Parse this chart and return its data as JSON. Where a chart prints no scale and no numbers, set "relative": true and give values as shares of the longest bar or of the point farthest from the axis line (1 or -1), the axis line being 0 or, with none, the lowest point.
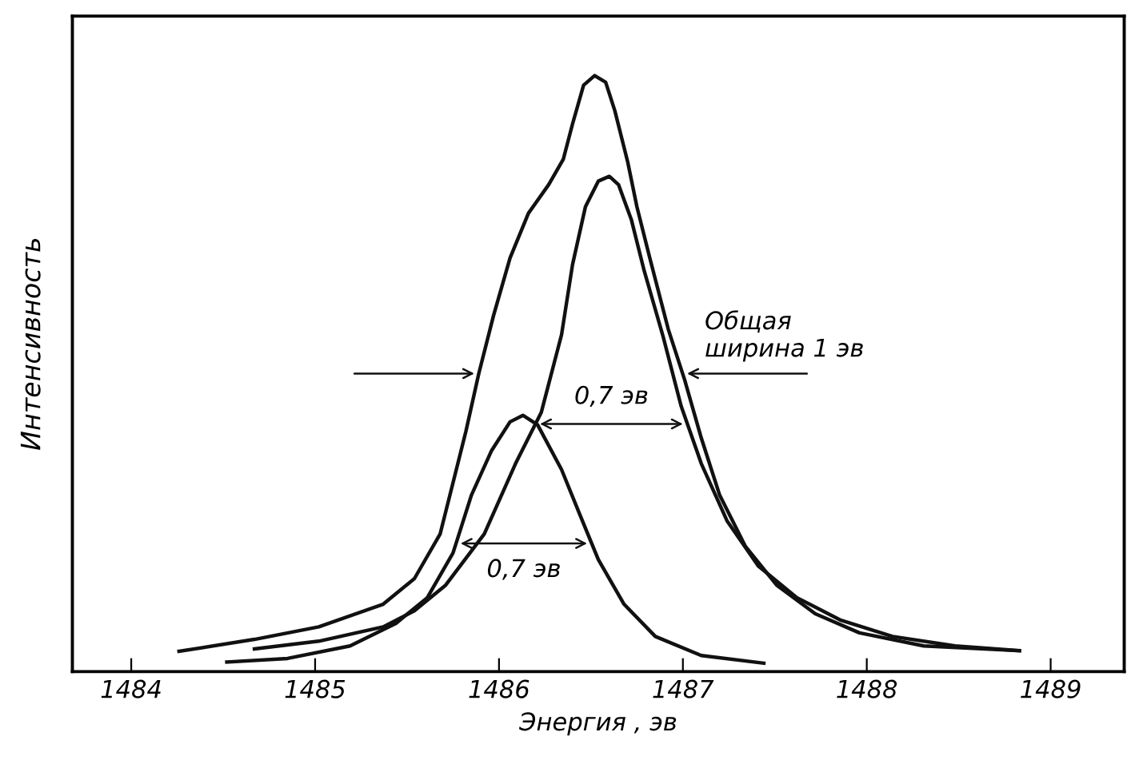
{
  "chart_data": {
    "type": "line",
    "relative": true,
    "xlabel": "Энергия , эв",
    "ylabel": "Интенсивность",
    "xlim": [
      1483.68,
      1489.4
    ],
    "xticks": [
      1484,
      1485,
      1486,
      1487,
      1488,
      1489
    ],
    "grid": false,
    "marker": "none",
    "line_style": "solid",
    "annotations": [
      "Общая\nширина 1 эв",
      "0,7 эв",
      "0,7 эв"
    ],
    "series": [
      {
        "color": "#111111",
        "x": [
          1484.26,
          1484.67,
          1485.02,
          1485.37,
          1485.54,
          1485.68,
          1485.75,
          1485.82,
          1485.89,
          1485.97,
          1486.06,
          1486.16,
          1486.27,
          1486.35,
          1486.4,
          1486.46,
          1486.52,
          1486.58,
          1486.63,
          1486.7,
          1486.75,
          1486.82,
          1486.92,
          1487.01,
          1487.1,
          1487.2,
          1487.34,
          1487.51,
          1487.72,
          1487.96,
          1488.31,
          1488.83
        ],
        "values": [
          0.034,
          0.054,
          0.075,
          0.113,
          0.156,
          0.231,
          0.317,
          0.403,
          0.5,
          0.597,
          0.694,
          0.769,
          0.817,
          0.86,
          0.919,
          0.984,
          1.0,
          0.989,
          0.941,
          0.855,
          0.78,
          0.694,
          0.575,
          0.489,
          0.392,
          0.296,
          0.21,
          0.145,
          0.097,
          0.065,
          0.043,
          0.035
        ]
      },
      {
        "color": "#111111",
        "x": [
          1484.67,
          1485.02,
          1485.37,
          1485.54,
          1485.71,
          1485.92,
          1486.09,
          1486.23,
          1486.34,
          1486.4,
          1486.47,
          1486.54,
          1486.6,
          1486.65,
          1486.72,
          1486.79,
          1486.89,
          1486.99,
          1487.1,
          1487.24,
          1487.41,
          1487.62,
          1487.86,
          1488.14,
          1488.48,
          1488.83
        ],
        "values": [
          0.038,
          0.051,
          0.075,
          0.102,
          0.145,
          0.231,
          0.349,
          0.435,
          0.565,
          0.683,
          0.78,
          0.823,
          0.831,
          0.817,
          0.758,
          0.672,
          0.565,
          0.446,
          0.349,
          0.253,
          0.177,
          0.124,
          0.086,
          0.059,
          0.043,
          0.035
        ]
      },
      {
        "color": "#111111",
        "x": [
          1484.52,
          1484.85,
          1485.19,
          1485.44,
          1485.61,
          1485.75,
          1485.85,
          1485.96,
          1486.06,
          1486.13,
          1486.21,
          1486.34,
          1486.44,
          1486.54,
          1486.68,
          1486.85,
          1487.1,
          1487.44
        ],
        "values": [
          0.016,
          0.022,
          0.043,
          0.081,
          0.124,
          0.199,
          0.296,
          0.371,
          0.419,
          0.43,
          0.414,
          0.339,
          0.263,
          0.188,
          0.113,
          0.059,
          0.027,
          0.014
        ]
      }
    ]
  }
}
